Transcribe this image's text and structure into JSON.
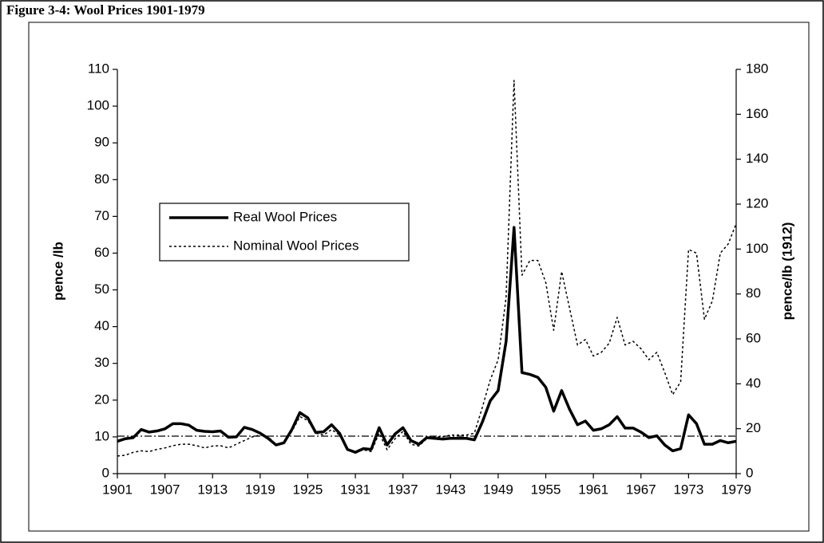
{
  "chart_data": {
    "type": "line",
    "title": "Figure 3-4: Wool Prices 1901-1979",
    "y_label": "pence /lb",
    "y2_label": "pence/lb (1912)",
    "x": [
      1901,
      1902,
      1903,
      1904,
      1905,
      1906,
      1907,
      1908,
      1909,
      1910,
      1911,
      1912,
      1913,
      1914,
      1915,
      1916,
      1917,
      1918,
      1919,
      1920,
      1921,
      1922,
      1923,
      1924,
      1925,
      1926,
      1927,
      1928,
      1929,
      1930,
      1931,
      1932,
      1933,
      1934,
      1935,
      1936,
      1937,
      1938,
      1939,
      1940,
      1941,
      1942,
      1943,
      1944,
      1945,
      1946,
      1947,
      1948,
      1949,
      1950,
      1951,
      1952,
      1953,
      1954,
      1955,
      1956,
      1957,
      1958,
      1959,
      1960,
      1961,
      1962,
      1963,
      1964,
      1965,
      1966,
      1967,
      1968,
      1969,
      1970,
      1971,
      1972,
      1973,
      1974,
      1975,
      1976,
      1977,
      1978,
      1979
    ],
    "series": [
      {
        "name": "Real Wool Prices",
        "color": "#000000",
        "style": "solid",
        "values": [
          8.8,
          9.5,
          9.8,
          12,
          11.3,
          11.6,
          12.2,
          13.6,
          13.6,
          13.2,
          11.8,
          11.5,
          11.4,
          11.6,
          9.9,
          10,
          12.6,
          12,
          11,
          9.6,
          7.8,
          8.4,
          12,
          16.6,
          15.2,
          11.2,
          11.4,
          13.3,
          11,
          6.6,
          5.8,
          6.8,
          6.6,
          12.5,
          7.8,
          10.8,
          12.5,
          9,
          8,
          9.8,
          9.6,
          9.4,
          9.6,
          9.6,
          9.6,
          9.2,
          14,
          19.8,
          22.6,
          36,
          67,
          27.5,
          27,
          26.2,
          23.5,
          17,
          22.6,
          17.5,
          13.3,
          14.3,
          11.8,
          12.2,
          13.3,
          15.5,
          12.4,
          12.4,
          11.3,
          9.8,
          10.3,
          7.8,
          6.2,
          6.8,
          16,
          13.6,
          8,
          8,
          9,
          8.4,
          8.8
        ]
      },
      {
        "name": "Nominal Wool Prices",
        "color": "#000000",
        "style": "dotted",
        "values": [
          4.8,
          5,
          5.8,
          6.2,
          6,
          6.6,
          7,
          7.6,
          8,
          8,
          7.6,
          7,
          7.5,
          7.6,
          7,
          8,
          9,
          10,
          10.5,
          10,
          8,
          8.4,
          11.5,
          15.5,
          14.5,
          11,
          10.5,
          12,
          10.5,
          6.5,
          5.6,
          6.5,
          6,
          11,
          6.5,
          9.5,
          11.5,
          8,
          7.5,
          9.5,
          10,
          10,
          10.5,
          10.5,
          10.5,
          11,
          18,
          25.5,
          31,
          48,
          107,
          54,
          58,
          58,
          52,
          39,
          55,
          45,
          35,
          36.5,
          32,
          33,
          35.5,
          42.5,
          35,
          36,
          34,
          31,
          33,
          27.5,
          21.5,
          25,
          61,
          60,
          42,
          47,
          60,
          62.5,
          68
        ]
      }
    ],
    "reference_line": 10.2,
    "xlim": [
      1901,
      1979
    ],
    "xticks": [
      1901,
      1907,
      1913,
      1919,
      1925,
      1931,
      1937,
      1943,
      1949,
      1955,
      1961,
      1967,
      1973,
      1979
    ],
    "ylim": [
      0,
      110
    ],
    "yticks": [
      0,
      10,
      20,
      30,
      40,
      50,
      60,
      70,
      80,
      90,
      100,
      110
    ],
    "y2lim": [
      0,
      180
    ],
    "y2ticks": [
      0,
      20,
      40,
      60,
      80,
      100,
      120,
      140,
      160,
      180
    ],
    "grid": false,
    "legend": "upper left"
  }
}
